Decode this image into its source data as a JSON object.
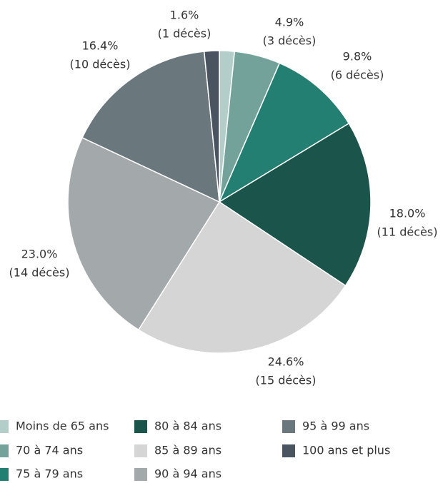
{
  "chart_data": {
    "type": "pie",
    "categories": [
      "Moins de 65 ans",
      "70 à 74 ans",
      "75 à 79 ans",
      "80 à 84 ans",
      "85 à 89 ans",
      "90 à 94 ans",
      "95 à 99 ans",
      "100 ans et plus"
    ],
    "values": [
      1.6,
      4.9,
      9.8,
      18.0,
      24.6,
      23.0,
      16.4,
      1.6
    ],
    "value_labels": [
      null,
      "4.9%",
      "9.8%",
      "18.0%",
      "24.6%",
      "23.0%",
      "16.4%",
      "1.6%"
    ],
    "count_labels": [
      null,
      "(3 décès)",
      "(6 décès)",
      "(11 décès)",
      "(15 décès)",
      "(14 décès)",
      "(10 décès)",
      "(1 décès)"
    ],
    "colors": [
      "#b3cdc9",
      "#72a29a",
      "#237f72",
      "#1a544b",
      "#d5d5d5",
      "#a3a8aa",
      "#6a787d",
      "#4a5360"
    ]
  }
}
